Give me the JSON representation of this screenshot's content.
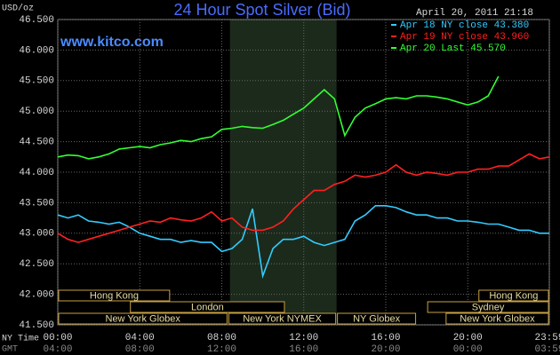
{
  "chart_data": {
    "type": "line",
    "title": "24 Hour Spot Silver (Bid)",
    "subtitle": "April 20, 2011 21:18",
    "watermark": "www.kitco.com",
    "y_label": "USD/oz",
    "x_label": "NY Time",
    "x2_label": "GMT",
    "legend": "upper right",
    "grid": true,
    "highlight": [
      8.4,
      13.6
    ],
    "xlim": [
      0,
      23.98
    ],
    "ylim": [
      41.5,
      46.5
    ],
    "yticks": [
      {
        "value": 41.5,
        "label": "41.500"
      },
      {
        "value": 42,
        "label": "42.000"
      },
      {
        "value": 42.5,
        "label": "42.500"
      },
      {
        "value": 43,
        "label": "43.000"
      },
      {
        "value": 43.5,
        "label": "43.500"
      },
      {
        "value": 44,
        "label": "44.000"
      },
      {
        "value": 44.5,
        "label": "44.500"
      },
      {
        "value": 45,
        "label": "45.000"
      },
      {
        "value": 45.5,
        "label": "45.500"
      },
      {
        "value": 46,
        "label": "46.000"
      },
      {
        "value": 46.5,
        "label": "46.500"
      }
    ],
    "xticks": [
      {
        "value": 0,
        "label": "00:00"
      },
      {
        "value": 4,
        "label": "04:00"
      },
      {
        "value": 8,
        "label": "08:00"
      },
      {
        "value": 12,
        "label": "12:00"
      },
      {
        "value": 16,
        "label": "16:00"
      },
      {
        "value": 20,
        "label": "20:00"
      },
      {
        "value": 23.98,
        "label": "23:59"
      }
    ],
    "x2ticks": [
      {
        "value": 0,
        "label": "04:00"
      },
      {
        "value": 4,
        "label": "08:00"
      },
      {
        "value": 8,
        "label": "12:00"
      },
      {
        "value": 12,
        "label": "16:00"
      },
      {
        "value": 16,
        "label": "20:00"
      },
      {
        "value": 20,
        "label": "00:00"
      },
      {
        "value": 23.98,
        "label": "03:59"
      }
    ],
    "sessions": [
      [
        {
          "label": "Hong Kong",
          "start": 0,
          "end": 5.5
        },
        {
          "label": "Hong Kong",
          "start": 20.5,
          "end": 23.98
        }
      ],
      [
        {
          "label": "London",
          "start": 3.5,
          "end": 11.1
        },
        {
          "label": "Sydney",
          "start": 18.0,
          "end": 23.98
        }
      ],
      [
        {
          "label": "New York Globex",
          "start": 0,
          "end": 8.3
        },
        {
          "label": "New York NYMEX",
          "start": 8.3,
          "end": 13.6
        },
        {
          "label": "NY Globex",
          "start": 13.6,
          "end": 17.5
        },
        {
          "label": "New York Globex",
          "start": 18.9,
          "end": 23.98
        }
      ]
    ],
    "x": [
      0,
      0.5,
      1,
      1.5,
      2,
      2.5,
      3,
      3.5,
      4,
      4.5,
      5,
      5.5,
      6,
      6.5,
      7,
      7.5,
      8,
      8.5,
      9,
      9.5,
      10,
      10.5,
      11,
      11.5,
      12,
      12.5,
      13,
      13.5,
      14,
      14.5,
      15,
      15.5,
      16,
      16.5,
      17,
      17.5,
      18,
      18.5,
      19,
      19.5,
      20,
      20.5,
      21,
      21.5,
      22,
      22.5,
      23,
      23.5,
      23.98
    ],
    "series": [
      {
        "name": "Apr 18 NY close 43.380",
        "color": "#33ccff",
        "values": [
          43.3,
          43.25,
          43.3,
          43.2,
          43.18,
          43.15,
          43.18,
          43.1,
          43.0,
          42.95,
          42.9,
          42.9,
          42.85,
          42.88,
          42.85,
          42.85,
          42.7,
          42.75,
          42.9,
          43.4,
          42.3,
          42.75,
          42.9,
          42.9,
          42.95,
          42.85,
          42.8,
          42.85,
          42.9,
          43.2,
          43.3,
          43.45,
          43.45,
          43.42,
          43.35,
          43.3,
          43.3,
          43.25,
          43.25,
          43.2,
          43.2,
          43.18,
          43.15,
          43.15,
          43.1,
          43.05,
          43.05,
          43.0,
          43.0
        ]
      },
      {
        "name": "Apr 19 NY close 43.960",
        "color": "#ff2020",
        "values": [
          43.0,
          42.9,
          42.85,
          42.9,
          42.95,
          43.0,
          43.05,
          43.1,
          43.15,
          43.2,
          43.18,
          43.25,
          43.22,
          43.2,
          43.25,
          43.35,
          43.2,
          43.25,
          43.1,
          43.05,
          43.05,
          43.1,
          43.2,
          43.4,
          43.55,
          43.7,
          43.7,
          43.8,
          43.85,
          43.95,
          43.92,
          43.95,
          44.0,
          44.12,
          44.0,
          43.95,
          44.0,
          43.98,
          43.95,
          44.0,
          44.0,
          44.05,
          44.05,
          44.1,
          44.1,
          44.2,
          44.3,
          44.22,
          44.25
        ]
      },
      {
        "name": "Apr 20 Last 45.570",
        "color": "#33ff33",
        "values": [
          44.25,
          44.28,
          44.27,
          44.22,
          44.25,
          44.3,
          44.38,
          44.4,
          44.42,
          44.4,
          44.45,
          44.48,
          44.52,
          44.5,
          44.55,
          44.58,
          44.7,
          44.72,
          44.75,
          44.73,
          44.72,
          44.78,
          44.85,
          44.95,
          45.05,
          45.2,
          45.35,
          45.2,
          44.6,
          44.9,
          45.05,
          45.12,
          45.2,
          45.22,
          45.2,
          45.25,
          45.25,
          45.23,
          45.2,
          45.15,
          45.1,
          45.15,
          45.25,
          45.57,
          null,
          null,
          null,
          null,
          null
        ]
      }
    ]
  }
}
